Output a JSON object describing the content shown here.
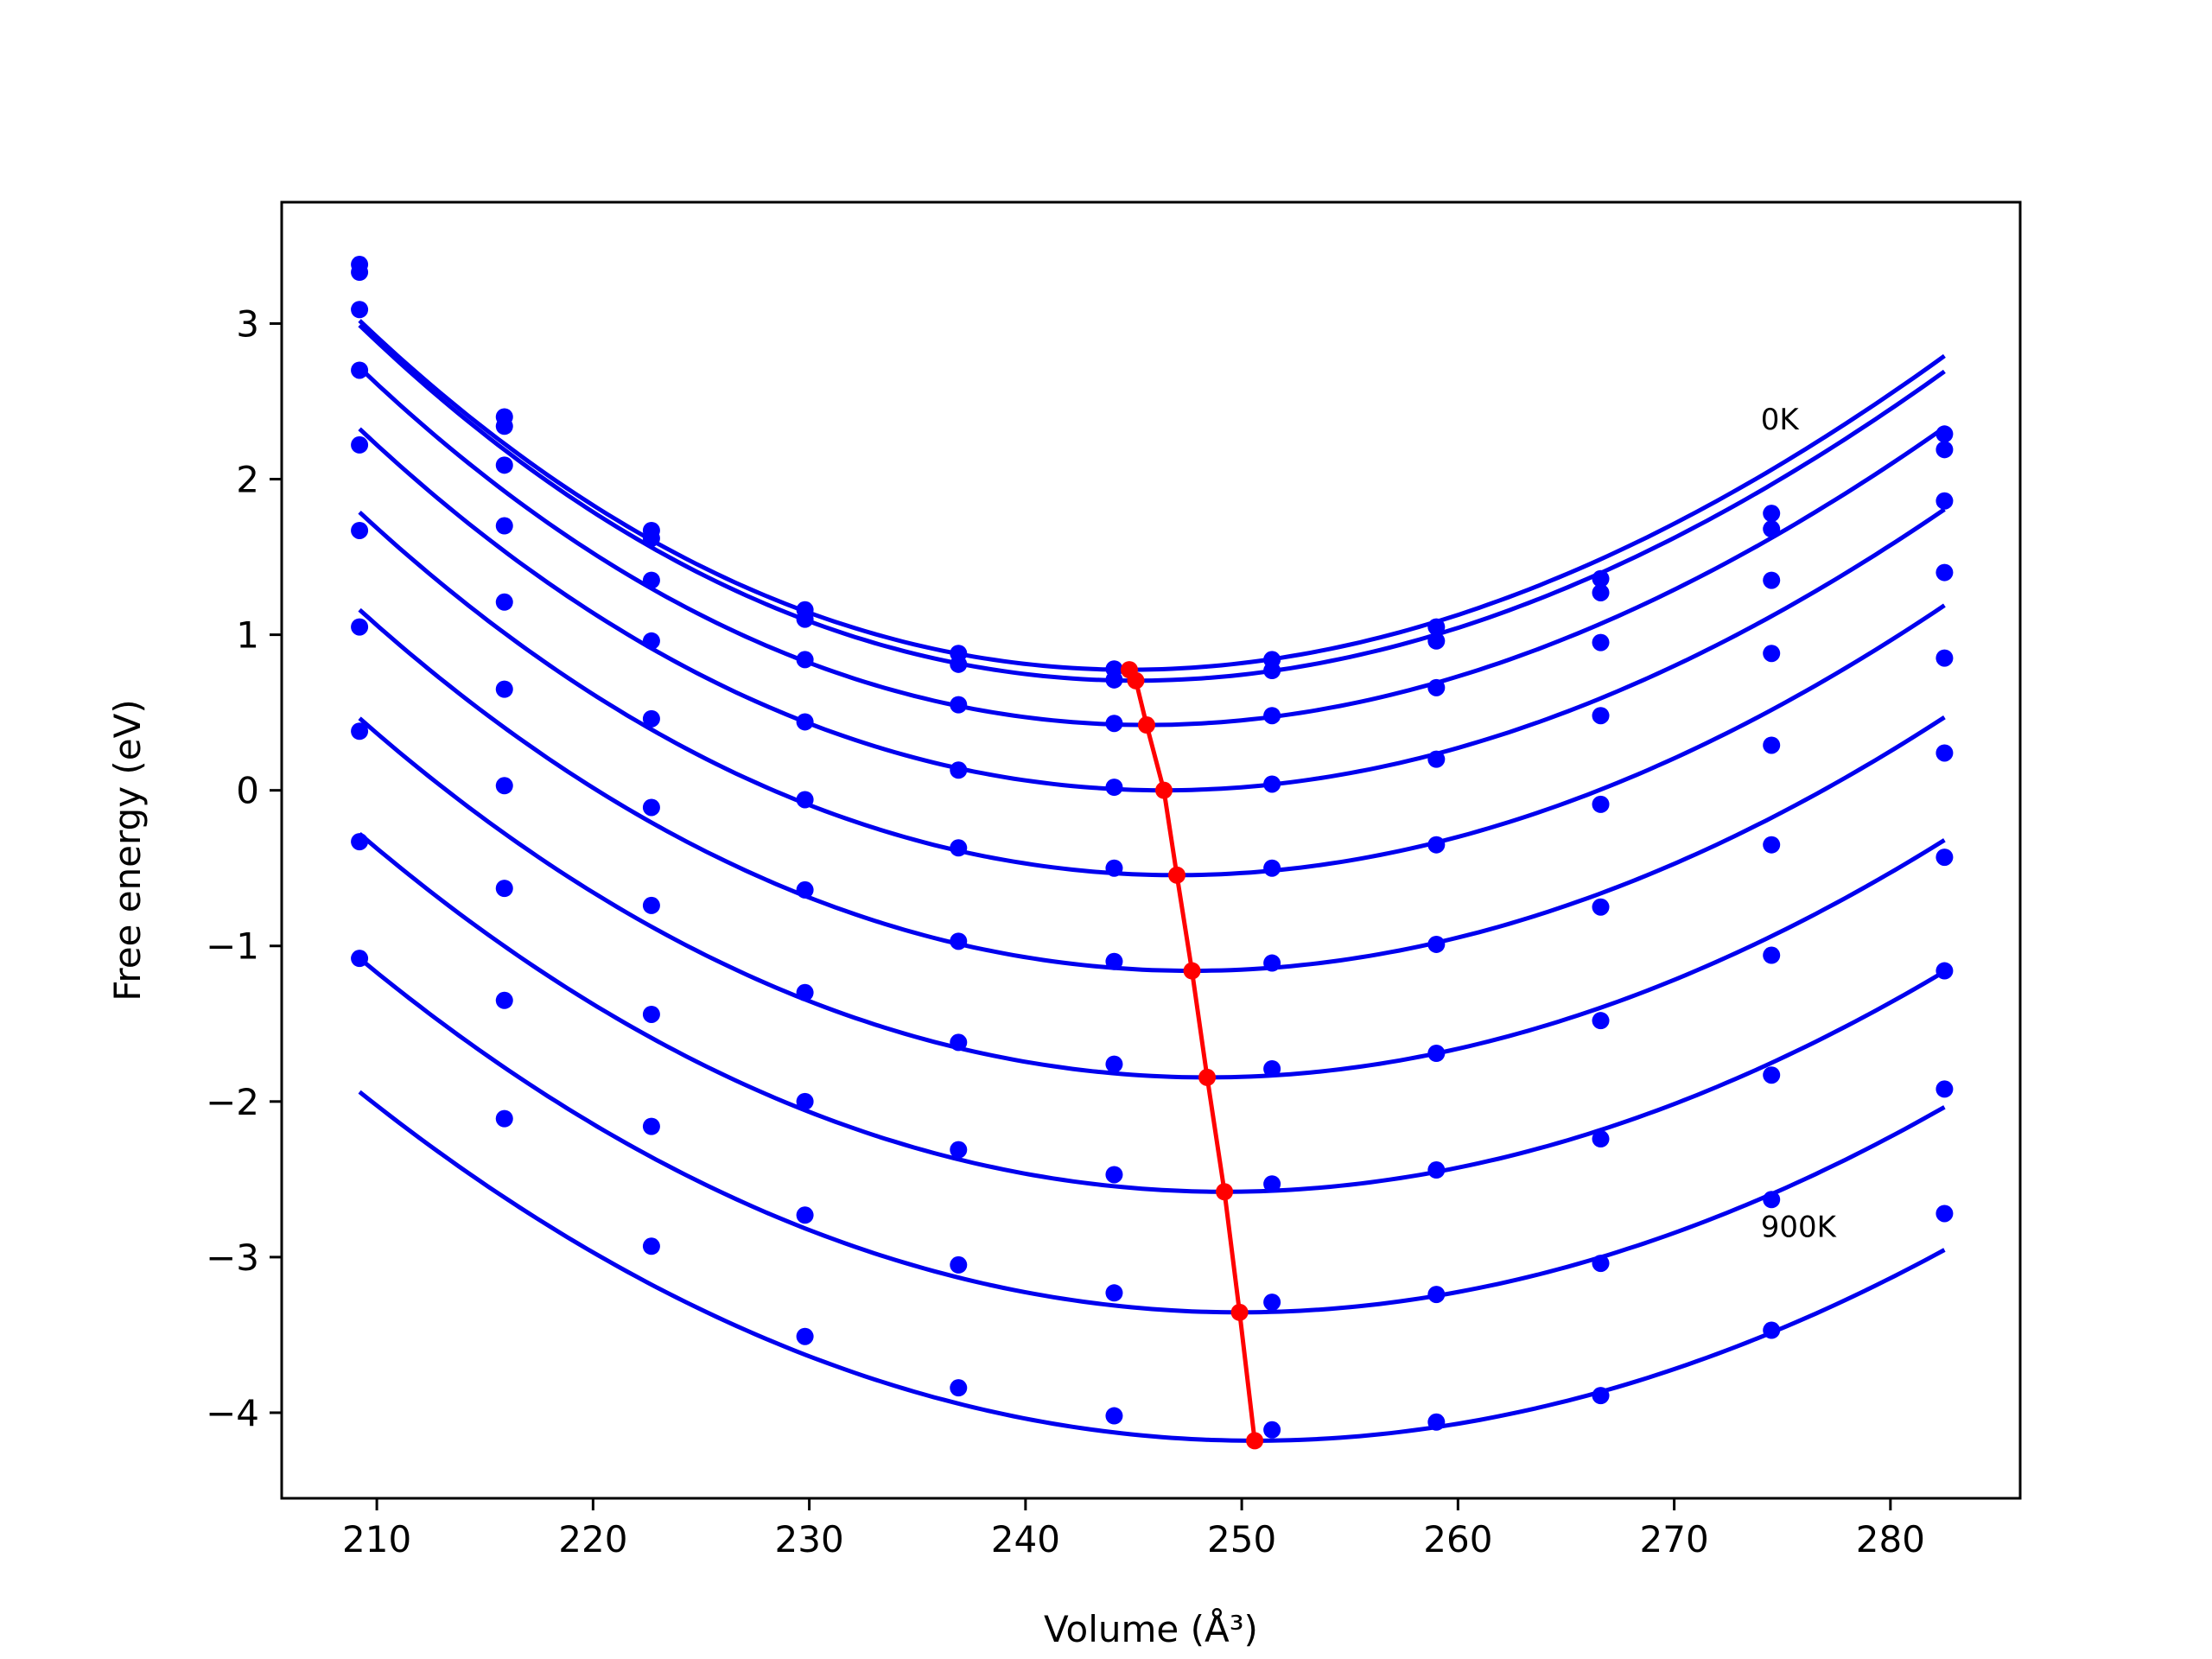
{
  "chart_data": {
    "type": "line",
    "xlabel": "Volume (Å³)",
    "ylabel": "Free energy (eV)",
    "xlim": [
      205.6,
      286.0
    ],
    "ylim": [
      -4.55,
      3.78
    ],
    "xticks": [
      210,
      220,
      230,
      240,
      250,
      260,
      270,
      280
    ],
    "yticks": [
      3,
      2,
      1,
      0,
      -1,
      -2,
      -3,
      -4
    ],
    "grid": false,
    "legend": "none",
    "colors": {
      "curves": "#0000ee",
      "points": "#0000ff",
      "minima": "#ff0000"
    },
    "annotations": [
      {
        "text": "0K",
        "x": 274.0,
        "y": 2.32
      },
      {
        "text": "900K",
        "x": 274.0,
        "y": -2.87
      }
    ],
    "x": [
      209.2,
      215.9,
      222.7,
      229.8,
      236.9,
      244.1,
      251.4,
      259.0,
      266.6,
      274.5,
      282.5
    ],
    "series": [
      {
        "points": [
          3.38,
          2.4,
          1.67,
          1.16,
          0.88,
          0.78,
          0.84,
          1.05,
          1.36,
          1.78,
          2.29
        ],
        "fit": {
          "vmin": 244.8,
          "fmin": 0.775,
          "b": 0.0016,
          "c": 4.8e-06
        }
      },
      {
        "points": [
          3.33,
          2.34,
          1.62,
          1.1,
          0.81,
          0.71,
          0.77,
          0.96,
          1.27,
          1.68,
          2.19
        ],
        "fit": {
          "vmin": 245.1,
          "fmin": 0.705,
          "b": 0.0016,
          "c": 4.8e-06
        }
      },
      {
        "points": [
          3.09,
          2.09,
          1.35,
          0.84,
          0.55,
          0.43,
          0.48,
          0.66,
          0.95,
          1.35,
          1.86
        ],
        "fit": {
          "vmin": 245.6,
          "fmin": 0.42,
          "b": 0.00157,
          "c": 4.5e-06
        }
      },
      {
        "points": [
          2.7,
          1.7,
          0.96,
          0.44,
          0.13,
          0.02,
          0.04,
          0.2,
          0.48,
          0.88,
          1.4
        ],
        "fit": {
          "vmin": 246.4,
          "fmin": 0.0,
          "b": 0.00153,
          "c": 4e-06
        }
      },
      {
        "points": [
          2.22,
          1.21,
          0.46,
          -0.06,
          -0.37,
          -0.5,
          -0.5,
          -0.35,
          -0.09,
          0.29,
          0.85
        ],
        "fit": {
          "vmin": 247.0,
          "fmin": -0.545,
          "b": 0.0015,
          "c": 3.5e-06
        }
      },
      {
        "points": [
          1.67,
          0.65,
          -0.11,
          -0.64,
          -0.97,
          -1.1,
          -1.11,
          -0.99,
          -0.75,
          -0.35,
          0.24
        ],
        "fit": {
          "vmin": 247.7,
          "fmin": -1.16,
          "b": 0.00145,
          "c": 3e-06
        }
      },
      {
        "points": [
          1.05,
          0.03,
          -0.74,
          -1.3,
          -1.62,
          -1.76,
          -1.79,
          -1.69,
          -1.48,
          -1.06,
          -0.43
        ],
        "fit": {
          "vmin": 248.4,
          "fmin": -1.845,
          "b": 0.0014,
          "c": 2.6e-06
        }
      },
      {
        "points": [
          0.38,
          -0.63,
          -1.44,
          -2.0,
          -2.31,
          -2.47,
          -2.53,
          -2.44,
          -2.24,
          -1.83,
          -1.16
        ],
        "fit": {
          "vmin": 249.2,
          "fmin": -2.58,
          "b": 0.00135,
          "c": 2.2e-06
        }
      },
      {
        "points": [
          -0.33,
          -1.35,
          -2.16,
          -2.73,
          -3.05,
          -3.23,
          -3.29,
          -3.24,
          -3.04,
          -2.63,
          -1.92
        ],
        "fit": {
          "vmin": 249.9,
          "fmin": -3.355,
          "b": 0.0013,
          "c": 1.8e-06
        }
      },
      {
        "points": [
          -1.08,
          -2.11,
          -2.93,
          -3.51,
          -3.84,
          -4.02,
          -4.11,
          -4.06,
          -3.89,
          -3.47,
          -2.72
        ],
        "fit": {
          "vmin": 250.6,
          "fmin": -4.18,
          "b": 0.00125,
          "c": 1.4e-06
        }
      }
    ],
    "minima": {
      "volume": [
        244.8,
        245.1,
        245.6,
        246.4,
        247.0,
        247.7,
        248.4,
        249.2,
        249.9,
        250.6
      ],
      "energy": [
        0.775,
        0.705,
        0.42,
        0.0,
        -0.545,
        -1.16,
        -1.845,
        -2.58,
        -3.355,
        -4.18
      ]
    }
  }
}
